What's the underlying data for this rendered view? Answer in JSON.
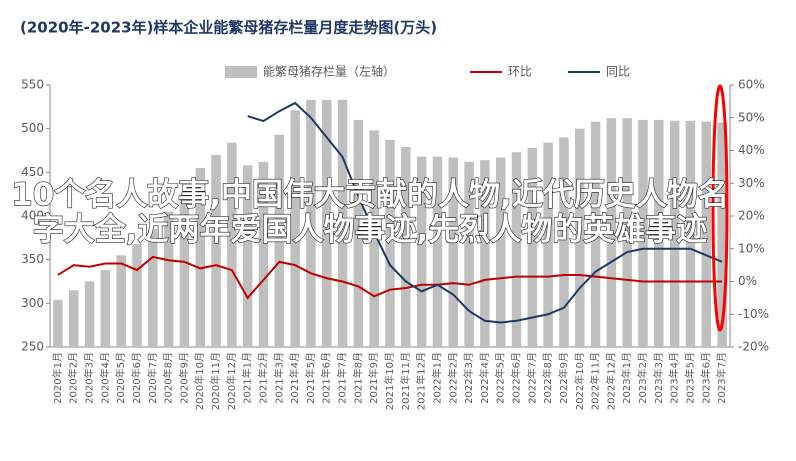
{
  "chart_data": {
    "type": "bar_line",
    "title": "(2020年-2023年)样本企业能繁母猪存栏量月度走势图(万头)",
    "annotation": "10个名人故事,中国伟大贡献的人物,近代历史人物名字大全,近两年爱国人物事迹,先烈人物的英雄事迹",
    "categories": [
      "2020年1月",
      "2020年2月",
      "2020年3月",
      "2020年4月",
      "2020年5月",
      "2020年6月",
      "2020年7月",
      "2020年8月",
      "2020年9月",
      "2020年10月",
      "2020年11月",
      "2020年12月",
      "2021年1月",
      "2021年2月",
      "2021年3月",
      "2021年4月",
      "2021年5月",
      "2021年6月",
      "2021年7月",
      "2021年8月",
      "2021年9月",
      "2021年10月",
      "2021年11月",
      "2021年12月",
      "2022年1月",
      "2022年2月",
      "2022年3月",
      "2022年4月",
      "2022年5月",
      "2022年6月",
      "2022年7月",
      "2022年8月",
      "2022年9月",
      "2022年10月",
      "2022年11月",
      "2022年12月",
      "2023年1月",
      "2023年2月",
      "2023年3月",
      "2023年4月",
      "2023年5月",
      "2023年6月",
      "2023年7月"
    ],
    "series": [
      {
        "name": "能繁母猪存栏量（左轴）",
        "color": "#bfbfbf",
        "kind": "bar",
        "values": [
          304,
          315,
          325,
          338,
          355,
          368,
          385,
          405,
          425,
          455,
          470,
          484,
          458,
          462,
          493,
          521,
          533,
          533,
          533,
          510,
          498,
          487,
          479,
          468,
          468,
          467,
          462,
          464,
          467,
          473,
          478,
          484,
          490,
          500,
          508,
          512,
          512,
          510,
          510,
          509,
          509,
          508,
          507
        ]
      },
      {
        "name": "环比",
        "color": "#c00000",
        "kind": "line",
        "axis": "y2",
        "values": [
          2,
          5,
          4.5,
          5.5,
          5.5,
          3.5,
          7.5,
          6.5,
          6,
          4,
          5,
          3.5,
          -5,
          0.5,
          6,
          5,
          2.5,
          1,
          0,
          -1.5,
          -4.5,
          -2.5,
          -2,
          -1,
          -1,
          -0.5,
          -1,
          0.5,
          1,
          1.5,
          1.5,
          1.5,
          2,
          2,
          1.5,
          1,
          0.5,
          0,
          0,
          0,
          0,
          0,
          0
        ]
      },
      {
        "name": "同比",
        "color": "#1f3864",
        "kind": "line",
        "axis": "y2",
        "values": [
          null,
          null,
          null,
          null,
          null,
          null,
          null,
          null,
          null,
          null,
          null,
          null,
          50.5,
          49,
          52,
          54.5,
          50,
          44,
          38,
          26,
          15,
          5,
          0,
          -3,
          -1,
          -4,
          -9,
          -12,
          -12.5,
          -12,
          -11,
          -10,
          -8,
          -2,
          3,
          6,
          9,
          10,
          10,
          10,
          10,
          8,
          6
        ]
      }
    ],
    "ylim": [
      250,
      550
    ],
    "yticks": [
      250,
      300,
      350,
      400,
      450,
      500,
      550
    ],
    "y2lim": [
      -20,
      60
    ],
    "y2ticks": [
      {
        "value": -20,
        "label": "-20%"
      },
      {
        "value": -10,
        "label": "-10%"
      },
      {
        "value": 0,
        "label": "0%"
      },
      {
        "value": 10,
        "label": "10%"
      },
      {
        "value": 20,
        "label": "20%"
      },
      {
        "value": 30,
        "label": "30%"
      },
      {
        "value": 40,
        "label": "40%"
      },
      {
        "value": 50,
        "label": "50%"
      },
      {
        "value": 60,
        "label": "60%"
      }
    ]
  }
}
